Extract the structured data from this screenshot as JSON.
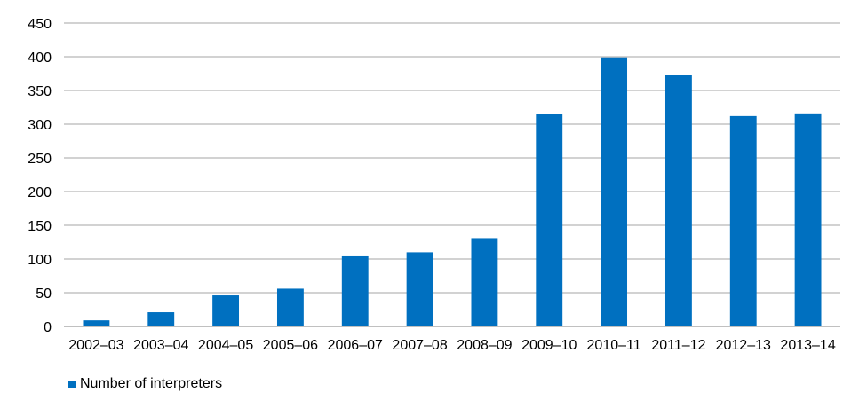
{
  "chart_data": {
    "type": "bar",
    "categories": [
      "2002–03",
      "2003–04",
      "2004–05",
      "2005–06",
      "2006–07",
      "2007–08",
      "2008–09",
      "2009–10",
      "2010–11",
      "2011–12",
      "2012–13",
      "2013–14"
    ],
    "series": [
      {
        "name": "Number of interpreters",
        "values": [
          9,
          21,
          46,
          56,
          104,
          110,
          131,
          315,
          399,
          373,
          312,
          316
        ]
      }
    ],
    "ylim": [
      0,
      450
    ],
    "yticks": [
      0,
      50,
      100,
      150,
      200,
      250,
      300,
      350,
      400,
      450
    ],
    "grid": true,
    "legend_position": "bottom-left",
    "colors": {
      "bar": "#0070c0",
      "grid": "#a6a6a6",
      "axis": "#808080"
    }
  }
}
